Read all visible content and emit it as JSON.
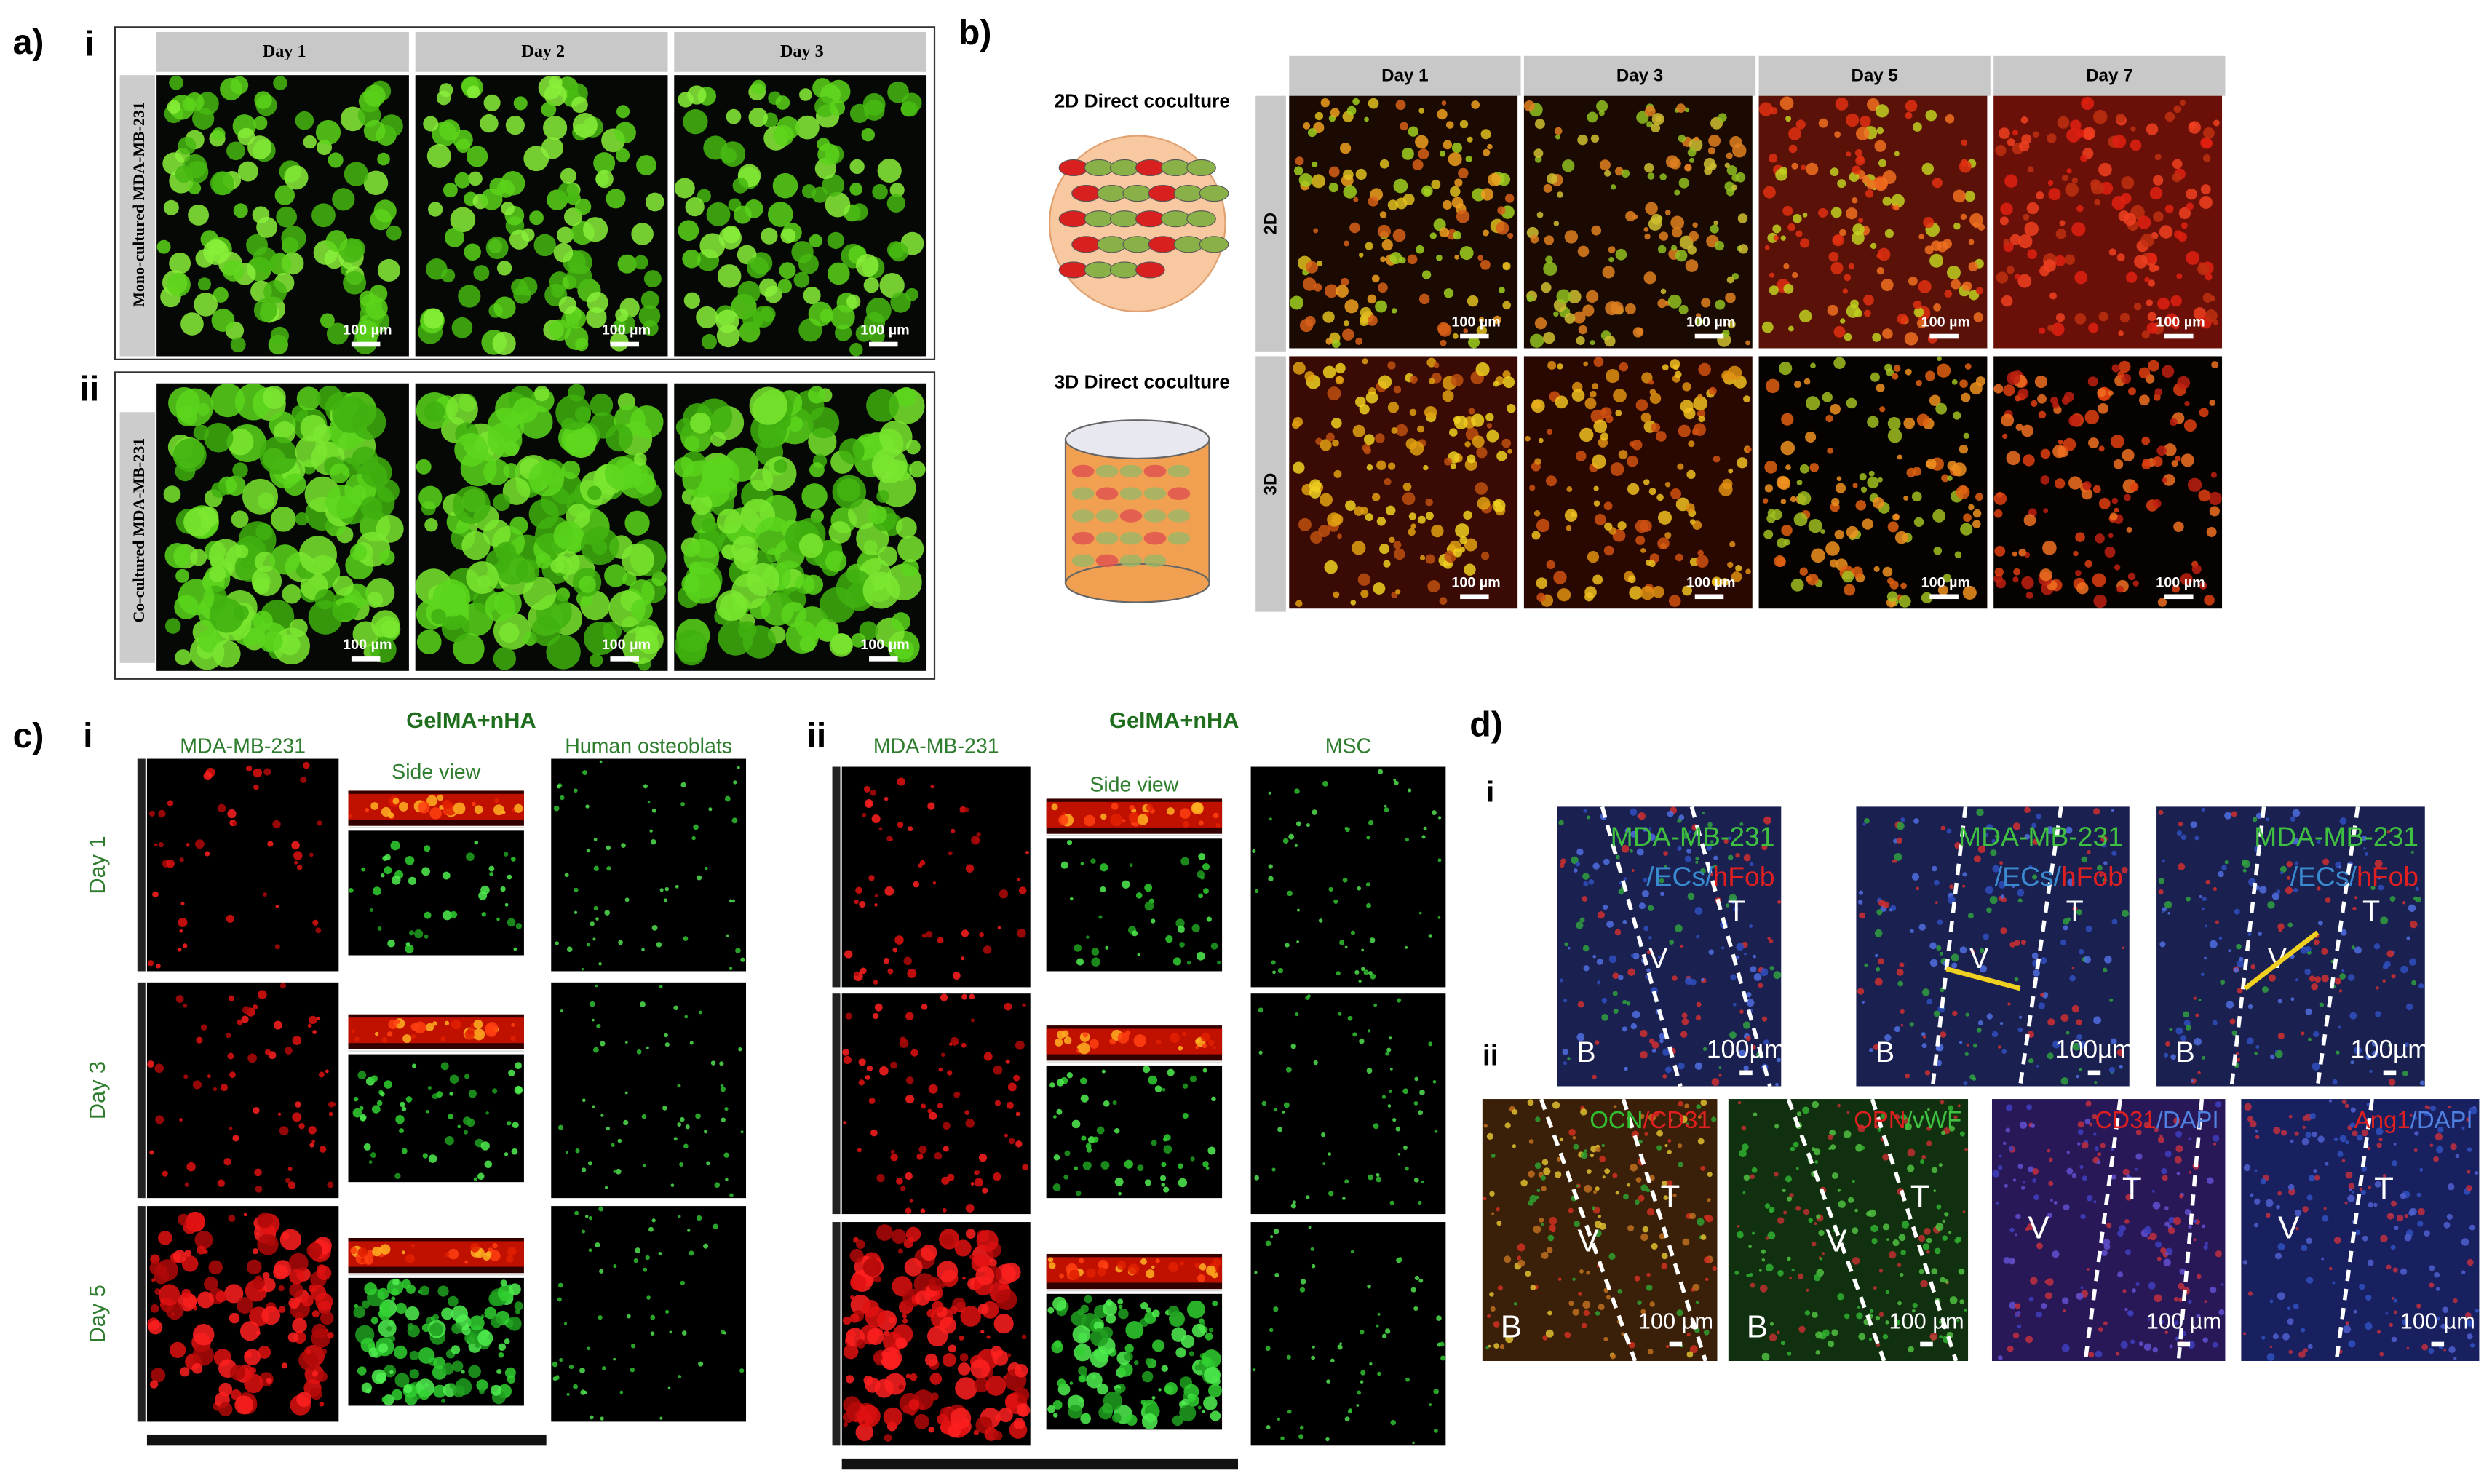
{
  "panel_a": {
    "label": "a)",
    "columns": [
      "Day 1",
      "Day 2",
      "Day 3"
    ],
    "rows": [
      {
        "label": "i",
        "title": "Mono-cultured MDA-MB-231"
      },
      {
        "label": "ii",
        "title": "Co-cultured MDA-MB-231"
      }
    ],
    "scale_bar": "100 µm"
  },
  "panel_b": {
    "label": "b)",
    "columns": [
      "Day 1",
      "Day 3",
      "Day 5",
      "Day 7"
    ],
    "rows": [
      {
        "label": "2D",
        "schematic": "2D Direct coculture"
      },
      {
        "label": "3D",
        "schematic": "3D Direct coculture"
      }
    ],
    "scale_bar": "100 µm"
  },
  "panel_c": {
    "label": "c)",
    "days": [
      "Day 1",
      "Day 3",
      "Day 5"
    ],
    "parts": [
      {
        "label": "i",
        "material": "GelMA+nHA",
        "left": "MDA-MB-231",
        "middle": "Side view",
        "right": "Human osteoblats"
      },
      {
        "label": "ii",
        "material": "GelMA+nHA",
        "left": "MDA-MB-231",
        "middle": "Side view",
        "right": "MSC"
      }
    ]
  },
  "panel_d": {
    "label": "d)",
    "row_labels": [
      "i",
      "ii"
    ],
    "row_i": {
      "cells": "MDA-MB-231",
      "ecs": "/ECs/",
      "fob": "hFob",
      "scale_bar": "100µm",
      "regions": [
        [
          "B",
          "V",
          "T"
        ],
        [
          "B",
          "V",
          "T"
        ],
        [
          "B",
          "V",
          "T"
        ]
      ]
    },
    "row_ii": {
      "scale_bar": "100 µm",
      "stains": [
        [
          "OCN",
          "/CD31"
        ],
        [
          "OPN",
          "/vWF"
        ],
        [
          "CD31",
          "/DAPI"
        ],
        [
          "Ang1",
          "/DAPI"
        ]
      ],
      "regions": [
        [
          "B",
          "V",
          "T"
        ],
        [
          "B",
          "V",
          "T"
        ],
        [
          "V",
          "T"
        ],
        [
          "V",
          "T"
        ]
      ]
    }
  }
}
